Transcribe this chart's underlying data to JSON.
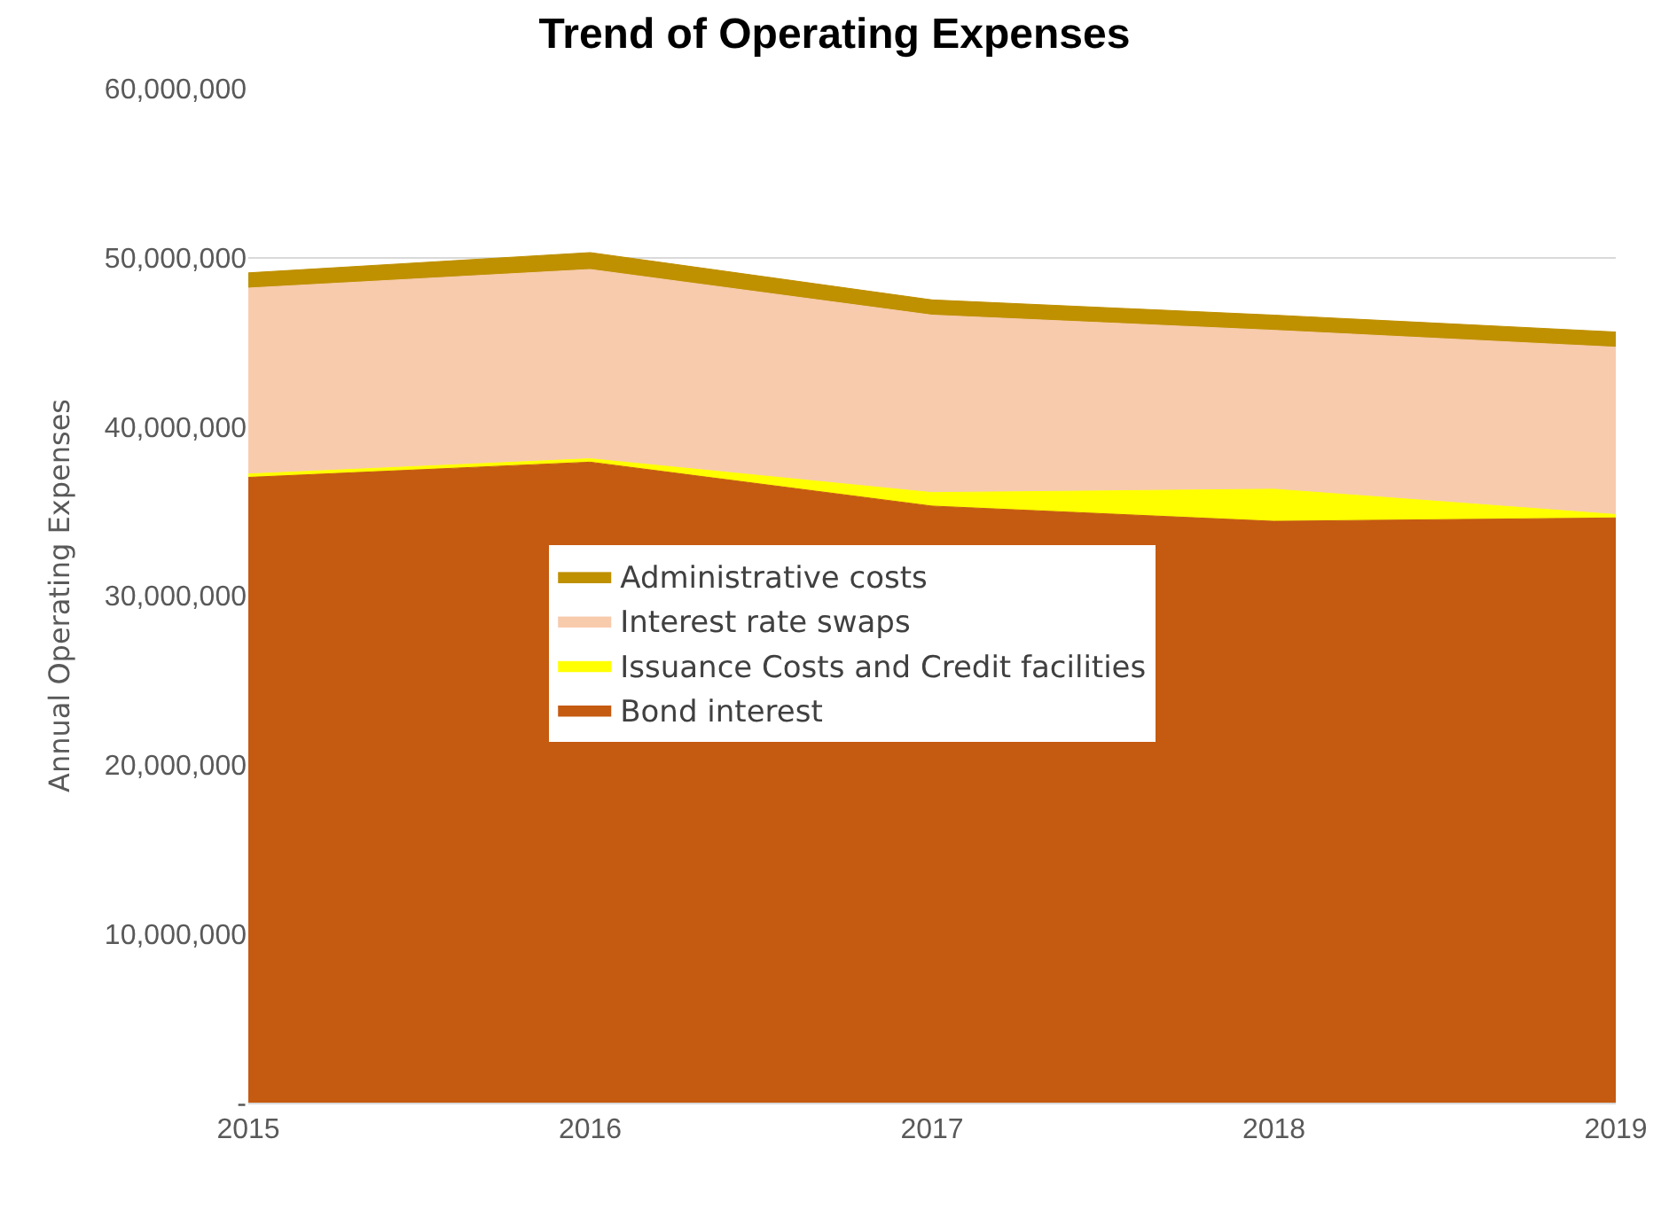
{
  "chart_data": {
    "type": "area",
    "stacked": true,
    "title": "Trend of Operating Expenses",
    "ylabel": "Annual Operating Expenses",
    "x": [
      2015,
      2016,
      2017,
      2018,
      2019
    ],
    "xlim": [
      2015,
      2019
    ],
    "xticks": [
      2015,
      2016,
      2017,
      2018,
      2019
    ],
    "ylim": [
      0,
      60000000
    ],
    "yticks": [
      {
        "value": 0,
        "label": "-"
      },
      {
        "value": 10000000,
        "label": "10,000,000"
      },
      {
        "value": 20000000,
        "label": "20,000,000"
      },
      {
        "value": 30000000,
        "label": "30,000,000"
      },
      {
        "value": 40000000,
        "label": "40,000,000"
      },
      {
        "value": 50000000,
        "label": "50,000,000"
      },
      {
        "value": 60000000,
        "label": "60,000,000"
      }
    ],
    "grid": "y",
    "legend": "center",
    "series": [
      {
        "name": "Bond interest",
        "color": "#c55a11",
        "values": [
          37000000,
          37900000,
          35300000,
          34400000,
          34600000
        ]
      },
      {
        "name": "Issuance Costs and Credit facilities",
        "color": "#ffff00",
        "values": [
          200000,
          200000,
          800000,
          1900000,
          200000
        ]
      },
      {
        "name": "Interest rate swaps",
        "color": "#f8cbad",
        "values": [
          11000000,
          11200000,
          10500000,
          9400000,
          9900000
        ]
      },
      {
        "name": "Administrative costs",
        "color": "#bf9000",
        "values": [
          900000,
          1000000,
          900000,
          900000,
          900000
        ]
      }
    ]
  }
}
